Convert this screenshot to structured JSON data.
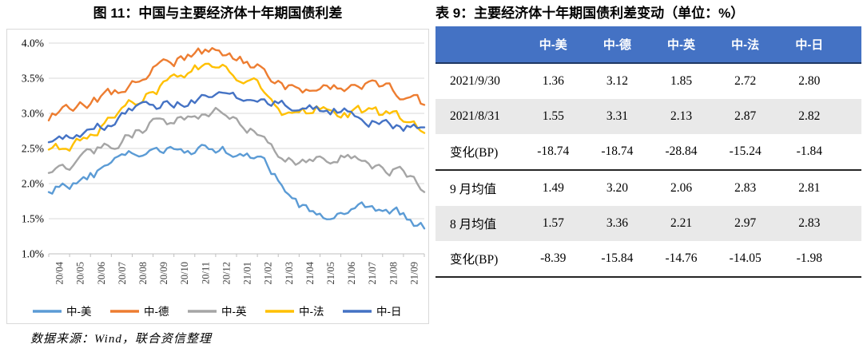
{
  "chart": {
    "title": "图 11：中国与主要经济体十年期国债利差"
  },
  "chart_data": {
    "type": "line",
    "title": "图 11：中国与主要经济体十年期国债利差",
    "x_categories": [
      "20/04",
      "20/05",
      "20/06",
      "20/07",
      "20/08",
      "20/09",
      "20/10",
      "20/11",
      "20/12",
      "21/01",
      "21/02",
      "21/03",
      "21/04",
      "21/05",
      "21/06",
      "21/07",
      "21/08",
      "21/09"
    ],
    "y_ticks": [
      "4.0%",
      "3.5%",
      "3.0%",
      "2.5%",
      "2.0%",
      "1.5%",
      "1.0%"
    ],
    "ylim": [
      1.0,
      4.0
    ],
    "y_unit": "%",
    "grid": true,
    "legend_position": "bottom",
    "grid_color": "#d9d9d9",
    "axis_color": "#bfbfbf",
    "series": [
      {
        "name": "中-美",
        "color": "#5B9BD5",
        "monthly_anchors": [
          1.92,
          2.0,
          2.1,
          2.25,
          2.42,
          2.43,
          2.45,
          2.5,
          2.48,
          2.45,
          2.42,
          2.1,
          1.65,
          1.57,
          1.58,
          1.75,
          1.62,
          1.58,
          1.36
        ]
      },
      {
        "name": "中-德",
        "color": "#ED7D31",
        "monthly_anchors": [
          2.95,
          3.05,
          3.15,
          3.28,
          3.45,
          3.62,
          3.72,
          3.85,
          3.9,
          3.8,
          3.68,
          3.45,
          3.28,
          3.42,
          3.35,
          3.42,
          3.38,
          3.28,
          3.12
        ]
      },
      {
        "name": "中-英",
        "color": "#A5A5A5",
        "monthly_anchors": [
          2.18,
          2.28,
          2.42,
          2.55,
          2.72,
          2.85,
          2.88,
          2.92,
          3.0,
          2.88,
          2.72,
          2.45,
          2.28,
          2.35,
          2.42,
          2.32,
          2.25,
          2.15,
          1.88
        ]
      },
      {
        "name": "中-法",
        "color": "#FFC000",
        "monthly_anchors": [
          2.45,
          2.55,
          2.7,
          2.92,
          3.15,
          3.32,
          3.45,
          3.62,
          3.68,
          3.55,
          3.42,
          3.02,
          2.95,
          3.08,
          2.95,
          3.02,
          2.98,
          2.9,
          2.72
        ]
      },
      {
        "name": "中-日",
        "color": "#4472C4",
        "monthly_anchors": [
          2.58,
          2.62,
          2.72,
          2.88,
          3.02,
          3.1,
          3.15,
          3.2,
          3.22,
          3.18,
          3.16,
          3.12,
          3.08,
          3.02,
          3.05,
          2.95,
          2.85,
          2.82,
          2.8
        ]
      }
    ]
  },
  "table": {
    "title": "表 9：主要经济体十年期国债利差变动（单位：%）",
    "header": {
      "bg": "#4472C4",
      "columns": [
        "",
        "中-美",
        "中-德",
        "中-英",
        "中-法",
        "中-日"
      ]
    },
    "shaded_row_bg": "#e9e9e9",
    "rows": [
      {
        "label": "2021/9/30",
        "values": [
          "1.36",
          "3.12",
          "1.85",
          "2.72",
          "2.80"
        ],
        "shaded": false,
        "rule_below": false
      },
      {
        "label": "2021/8/31",
        "values": [
          "1.55",
          "3.31",
          "2.13",
          "2.87",
          "2.82"
        ],
        "shaded": true,
        "rule_below": false
      },
      {
        "label": "变化(BP)",
        "values": [
          "-18.74",
          "-18.74",
          "-28.84",
          "-15.24",
          "-1.84"
        ],
        "shaded": false,
        "rule_below": true
      },
      {
        "label": "9 月均值",
        "values": [
          "1.49",
          "3.20",
          "2.06",
          "2.83",
          "2.81"
        ],
        "shaded": false,
        "rule_below": false
      },
      {
        "label": "8 月均值",
        "values": [
          "1.57",
          "3.36",
          "2.21",
          "2.97",
          "2.83"
        ],
        "shaded": true,
        "rule_below": false
      },
      {
        "label": "变化(BP)",
        "values": [
          "-8.39",
          "-15.84",
          "-14.76",
          "-14.05",
          "-1.98"
        ],
        "shaded": false,
        "rule_below": true
      }
    ]
  },
  "footer": {
    "source": "数据来源：Wind，联合资信整理"
  }
}
